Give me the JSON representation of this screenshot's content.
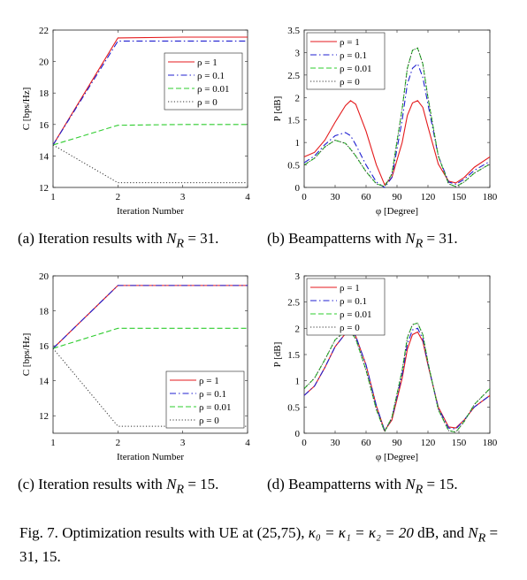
{
  "chart_data": [
    {
      "type": "line",
      "panel": "a",
      "xlabel": "Iteration Number",
      "ylabel": "C [bps/Hz]",
      "xlim": [
        1,
        4
      ],
      "ylim": [
        12,
        22
      ],
      "xticks": [
        "1",
        "2",
        "3",
        "4"
      ],
      "yticks": [
        "12",
        "14",
        "16",
        "18",
        "20",
        "22"
      ],
      "legend_position": "upper-right",
      "x": [
        1,
        2,
        3,
        4
      ],
      "series": [
        {
          "name": "ρ = 1",
          "color": "#e41a1c",
          "dash": "solid",
          "values": [
            14.7,
            21.5,
            21.55,
            21.55
          ]
        },
        {
          "name": "ρ = 0.1",
          "color": "#1f1fd0",
          "dash": "dashdot",
          "values": [
            14.7,
            21.3,
            21.3,
            21.3
          ]
        },
        {
          "name": "ρ = 0.01",
          "color": "#2ecc2e",
          "dash": "dashed",
          "values": [
            14.7,
            15.95,
            16.0,
            16.0
          ]
        },
        {
          "name": "ρ = 0",
          "color": "#333333",
          "dash": "dotted",
          "values": [
            14.7,
            12.3,
            12.3,
            12.3
          ]
        }
      ]
    },
    {
      "type": "line",
      "panel": "b",
      "xlabel": "φ [Degree]",
      "ylabel": "P [dB]",
      "xlim": [
        0,
        180
      ],
      "ylim": [
        0,
        3.5
      ],
      "xticks": [
        "0",
        "30",
        "60",
        "90",
        "120",
        "150",
        "180"
      ],
      "yticks": [
        "0",
        "0.5",
        "1",
        "1.5",
        "2",
        "2.5",
        "3",
        "3.5"
      ],
      "legend_position": "upper-left",
      "x": [
        0,
        10,
        20,
        30,
        40,
        45,
        50,
        60,
        70,
        78,
        85,
        95,
        100,
        105,
        110,
        115,
        120,
        130,
        140,
        147,
        155,
        165,
        180
      ],
      "series": [
        {
          "name": "ρ = 1",
          "color": "#e41a1c",
          "dash": "solid",
          "values": [
            0.68,
            0.78,
            1.05,
            1.45,
            1.82,
            1.93,
            1.85,
            1.25,
            0.5,
            0.06,
            0.22,
            1.0,
            1.6,
            1.88,
            1.93,
            1.78,
            1.35,
            0.52,
            0.14,
            0.1,
            0.22,
            0.45,
            0.68
          ]
        },
        {
          "name": "ρ = 0.1",
          "color": "#1f1fd0",
          "dash": "dashdot",
          "values": [
            0.55,
            0.7,
            0.95,
            1.15,
            1.22,
            1.15,
            0.95,
            0.5,
            0.12,
            0.0,
            0.22,
            1.5,
            2.3,
            2.65,
            2.75,
            2.45,
            1.85,
            0.7,
            0.12,
            0.07,
            0.18,
            0.38,
            0.58
          ]
        },
        {
          "name": "ρ = 0.01",
          "color": "#2ecc2e",
          "dash": "dashed",
          "values": [
            0.5,
            0.65,
            0.9,
            1.05,
            0.98,
            0.85,
            0.7,
            0.35,
            0.08,
            0.02,
            0.3,
            1.75,
            2.65,
            3.05,
            3.1,
            2.75,
            2.0,
            0.7,
            0.08,
            0.02,
            0.12,
            0.32,
            0.52
          ]
        },
        {
          "name": "ρ = 0",
          "color": "#333333",
          "dash": "dotted",
          "values": [
            0.5,
            0.65,
            0.9,
            1.05,
            0.98,
            0.85,
            0.7,
            0.35,
            0.08,
            0.02,
            0.3,
            1.75,
            2.65,
            3.05,
            3.1,
            2.75,
            2.0,
            0.7,
            0.08,
            0.02,
            0.12,
            0.32,
            0.52
          ]
        }
      ]
    },
    {
      "type": "line",
      "panel": "c",
      "xlabel": "Iteration Number",
      "ylabel": "C [bps/Hz]",
      "xlim": [
        1,
        4
      ],
      "ylim": [
        11,
        20
      ],
      "xticks": [
        "1",
        "2",
        "3",
        "4"
      ],
      "yticks": [
        "12",
        "14",
        "16",
        "18",
        "20"
      ],
      "legend_position": "lower-right",
      "x": [
        1,
        2,
        3,
        4
      ],
      "series": [
        {
          "name": "ρ = 1",
          "color": "#e41a1c",
          "dash": "solid",
          "values": [
            15.85,
            19.45,
            19.45,
            19.45
          ]
        },
        {
          "name": "ρ = 0.1",
          "color": "#1f1fd0",
          "dash": "dashdot",
          "values": [
            15.85,
            19.45,
            19.45,
            19.45
          ]
        },
        {
          "name": "ρ = 0.01",
          "color": "#2ecc2e",
          "dash": "dashed",
          "values": [
            15.85,
            17.0,
            17.0,
            17.0
          ]
        },
        {
          "name": "ρ = 0",
          "color": "#333333",
          "dash": "dotted",
          "values": [
            15.85,
            11.4,
            11.4,
            11.4
          ]
        }
      ]
    },
    {
      "type": "line",
      "panel": "d",
      "xlabel": "φ [Degree]",
      "ylabel": "P [dB]",
      "xlim": [
        0,
        180
      ],
      "ylim": [
        0,
        3
      ],
      "xticks": [
        "0",
        "30",
        "60",
        "90",
        "120",
        "150",
        "180"
      ],
      "yticks": [
        "0",
        "0.5",
        "1",
        "1.5",
        "2",
        "2.5",
        "3"
      ],
      "legend_position": "upper-left",
      "x": [
        0,
        10,
        20,
        30,
        40,
        45,
        50,
        60,
        70,
        78,
        85,
        95,
        100,
        105,
        110,
        115,
        120,
        130,
        140,
        147,
        155,
        165,
        180
      ],
      "series": [
        {
          "name": "ρ = 1",
          "color": "#e41a1c",
          "dash": "solid",
          "values": [
            0.72,
            0.9,
            1.25,
            1.65,
            1.9,
            1.93,
            1.85,
            1.3,
            0.52,
            0.05,
            0.25,
            1.05,
            1.6,
            1.88,
            1.93,
            1.75,
            1.3,
            0.5,
            0.12,
            0.1,
            0.25,
            0.5,
            0.72
          ]
        },
        {
          "name": "ρ = 0.1",
          "color": "#1f1fd0",
          "dash": "dashdot",
          "values": [
            0.72,
            0.9,
            1.25,
            1.65,
            1.9,
            1.93,
            1.85,
            1.3,
            0.52,
            0.05,
            0.28,
            1.12,
            1.7,
            1.97,
            2.0,
            1.8,
            1.32,
            0.48,
            0.1,
            0.08,
            0.25,
            0.5,
            0.72
          ]
        },
        {
          "name": "ρ = 0.01",
          "color": "#2ecc2e",
          "dash": "dashed",
          "values": [
            0.85,
            1.05,
            1.4,
            1.78,
            1.95,
            1.93,
            1.8,
            1.2,
            0.45,
            0.03,
            0.3,
            1.2,
            1.82,
            2.07,
            2.1,
            1.88,
            1.35,
            0.45,
            0.05,
            0.02,
            0.22,
            0.55,
            0.85
          ]
        },
        {
          "name": "ρ = 0",
          "color": "#333333",
          "dash": "dotted",
          "values": [
            0.85,
            1.05,
            1.4,
            1.78,
            1.95,
            1.93,
            1.8,
            1.2,
            0.45,
            0.03,
            0.3,
            1.2,
            1.82,
            2.07,
            2.1,
            1.88,
            1.35,
            0.45,
            0.05,
            0.02,
            0.22,
            0.55,
            0.85
          ]
        }
      ]
    }
  ],
  "captions": {
    "a": {
      "prefix": "(a) Iteration results with ",
      "var": "N",
      "sub": "R",
      "suffix": " = 31."
    },
    "b": {
      "prefix": "(b) Beampatterns with ",
      "var": "N",
      "sub": "R",
      "suffix": " = 31."
    },
    "c": {
      "prefix": "(c) Iteration results with ",
      "var": "N",
      "sub": "R",
      "suffix": " = 15."
    },
    "d": {
      "prefix": "(d) Beampatterns with ",
      "var": "N",
      "sub": "R",
      "suffix": " = 15."
    }
  },
  "figure_caption": {
    "label": "Fig. 7.",
    "text_1": " Optimization results with UE at (25,75), ",
    "kappa_text": "κ₀ = κ₁ = κ₂ = 20",
    "text_2": " dB, and ",
    "nr_var": "N",
    "nr_sub": "R",
    "text_3": " = 31, 15."
  }
}
